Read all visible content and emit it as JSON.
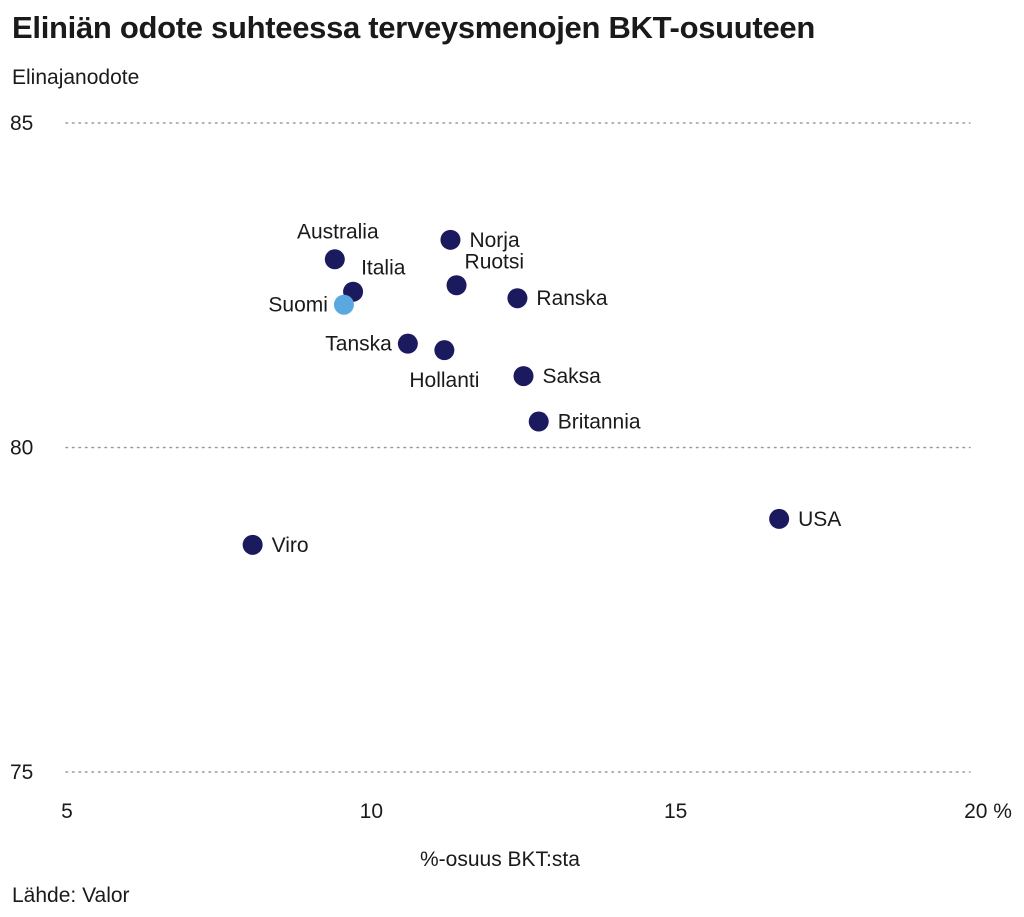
{
  "chart_data": {
    "type": "scatter",
    "title": "Eliniän odote suhteessa terveysmenojen BKT-osuuteen",
    "ylabel": "Elinajanodote",
    "xlabel": "%-osuus BKT:sta",
    "source": "Lähde: Valor",
    "xlim": [
      5,
      20
    ],
    "ylim": [
      75,
      85
    ],
    "x_ticks": [
      5,
      10,
      15,
      20
    ],
    "x_tick_labels": [
      "5",
      "10",
      "15",
      "20 %"
    ],
    "y_ticks": [
      75,
      80,
      85
    ],
    "y_tick_labels": [
      "75",
      "80",
      "85"
    ],
    "grid": "horizontal dotted",
    "colors": {
      "default": "#1c1a5e",
      "highlight": "#5aa8e0",
      "grid": "#9a9a9a"
    },
    "points": [
      {
        "label": "Australia",
        "x": 9.4,
        "y": 82.9,
        "label_pos": "above"
      },
      {
        "label": "Norja",
        "x": 11.3,
        "y": 83.2,
        "label_pos": "right"
      },
      {
        "label": "Italia",
        "x": 9.7,
        "y": 82.4,
        "label_pos": "above-right"
      },
      {
        "label": "Ruotsi",
        "x": 11.4,
        "y": 82.5,
        "label_pos": "above-right"
      },
      {
        "label": "Ranska",
        "x": 12.4,
        "y": 82.3,
        "label_pos": "right"
      },
      {
        "label": "Suomi",
        "x": 9.55,
        "y": 82.2,
        "label_pos": "left",
        "highlight": true
      },
      {
        "label": "Tanska",
        "x": 10.6,
        "y": 81.6,
        "label_pos": "left"
      },
      {
        "label": "Hollanti",
        "x": 11.2,
        "y": 81.5,
        "label_pos": "below"
      },
      {
        "label": "Saksa",
        "x": 12.5,
        "y": 81.1,
        "label_pos": "right"
      },
      {
        "label": "Britannia",
        "x": 12.75,
        "y": 80.4,
        "label_pos": "right"
      },
      {
        "label": "USA",
        "x": 16.7,
        "y": 78.9,
        "label_pos": "right"
      },
      {
        "label": "Viro",
        "x": 8.05,
        "y": 78.5,
        "label_pos": "right"
      }
    ]
  }
}
